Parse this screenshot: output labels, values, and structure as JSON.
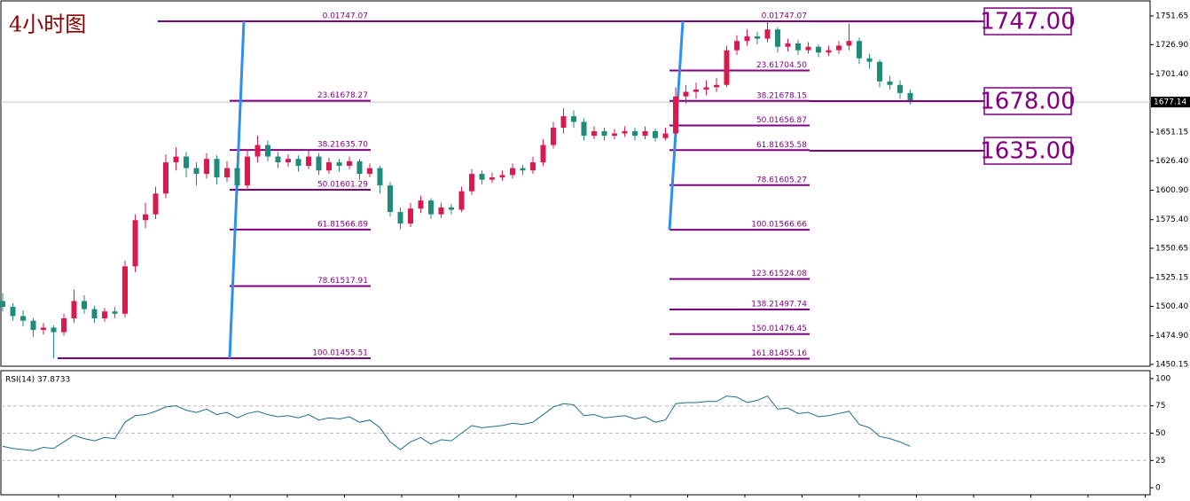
{
  "chart_data": {
    "type": "candlestick",
    "title": "4小时图",
    "ylim": [
      1448.6,
      1764.7
    ],
    "yticks": [
      1751.65,
      {
        "value": 1726.9,
        "label": "1726.90"
      },
      {
        "value": 1701.4,
        "label": "1701.40"
      },
      1651.15,
      {
        "value": 1626.4,
        "label": "1626.40"
      },
      {
        "value": 1600.9,
        "label": "1600.90"
      },
      {
        "value": 1575.4,
        "label": "1575.40"
      },
      1550.65,
      1525.15,
      {
        "value": 1500.4,
        "label": "1500.40"
      },
      {
        "value": 1474.9,
        "label": "1474.90"
      },
      1450.15
    ],
    "up_color": "#d81b4f",
    "down_color": "#1f8b7a",
    "candles": [
      [
        1505,
        1512,
        1496,
        1500
      ],
      [
        1500,
        1503,
        1488,
        1492
      ],
      [
        1492,
        1497,
        1483,
        1488
      ],
      [
        1488,
        1490,
        1474,
        1480
      ],
      [
        1480,
        1486,
        1476,
        1482
      ],
      [
        1482,
        1484,
        1455.51,
        1478
      ],
      [
        1478,
        1494,
        1475,
        1490
      ],
      [
        1490,
        1515,
        1486,
        1505
      ],
      [
        1505,
        1510,
        1494,
        1498
      ],
      [
        1498,
        1501,
        1486,
        1490
      ],
      [
        1490,
        1499,
        1487,
        1496
      ],
      [
        1496,
        1500,
        1490,
        1494
      ],
      [
        1494,
        1540,
        1491,
        1535
      ],
      [
        1535,
        1580,
        1530,
        1575
      ],
      [
        1575,
        1590,
        1568,
        1580
      ],
      [
        1580,
        1604,
        1576,
        1598
      ],
      [
        1598,
        1632,
        1594,
        1625
      ],
      [
        1625,
        1638,
        1618,
        1630
      ],
      [
        1630,
        1634,
        1612,
        1620
      ],
      [
        1620,
        1625,
        1605,
        1615
      ],
      [
        1615,
        1633,
        1611,
        1628
      ],
      [
        1628,
        1631,
        1606,
        1612
      ],
      [
        1612,
        1626,
        1608,
        1620
      ],
      [
        1620,
        1623,
        1598,
        1605
      ],
      [
        1605,
        1636,
        1601,
        1630
      ],
      [
        1630,
        1648,
        1625,
        1640
      ],
      [
        1640,
        1644,
        1626,
        1630
      ],
      [
        1630,
        1634,
        1620,
        1625
      ],
      [
        1625,
        1632,
        1621,
        1628
      ],
      [
        1628,
        1631,
        1617,
        1622
      ],
      [
        1622,
        1635,
        1619,
        1630
      ],
      [
        1630,
        1633,
        1614,
        1618
      ],
      [
        1618,
        1629,
        1615,
        1625
      ],
      [
        1625,
        1628,
        1617,
        1622
      ],
      [
        1622,
        1630,
        1619,
        1626
      ],
      [
        1626,
        1628,
        1610,
        1615
      ],
      [
        1615,
        1624,
        1612,
        1620
      ],
      [
        1620,
        1622,
        1598,
        1605
      ],
      [
        1605,
        1608,
        1578,
        1582
      ],
      [
        1582,
        1586,
        1566.89,
        1572
      ],
      [
        1572,
        1590,
        1569,
        1585
      ],
      [
        1585,
        1596,
        1581,
        1592
      ],
      [
        1592,
        1594,
        1576,
        1580
      ],
      [
        1580,
        1590,
        1577,
        1586
      ],
      [
        1586,
        1589,
        1580,
        1584
      ],
      [
        1584,
        1604,
        1582,
        1600
      ],
      [
        1600,
        1619,
        1597,
        1615
      ],
      [
        1615,
        1618,
        1606,
        1610
      ],
      [
        1610,
        1616,
        1607,
        1612
      ],
      [
        1612,
        1618,
        1609,
        1614
      ],
      [
        1614,
        1624,
        1611,
        1620
      ],
      [
        1620,
        1623,
        1614,
        1618
      ],
      [
        1618,
        1630,
        1615,
        1625
      ],
      [
        1625,
        1645,
        1622,
        1640
      ],
      [
        1640,
        1660,
        1637,
        1655
      ],
      [
        1655,
        1672,
        1650,
        1665
      ],
      [
        1665,
        1670,
        1655,
        1660
      ],
      [
        1660,
        1663,
        1644,
        1648
      ],
      [
        1648,
        1656,
        1645,
        1652
      ],
      [
        1652,
        1655,
        1644,
        1648
      ],
      [
        1648,
        1654,
        1645,
        1650
      ],
      [
        1650,
        1656,
        1647,
        1652
      ],
      [
        1652,
        1655,
        1644,
        1648
      ],
      [
        1648,
        1656,
        1645,
        1652
      ],
      [
        1652,
        1654,
        1643,
        1646
      ],
      [
        1646,
        1655,
        1644,
        1650
      ],
      [
        1650,
        1690,
        1648,
        1682
      ],
      [
        1682,
        1692,
        1676,
        1686
      ],
      [
        1686,
        1694,
        1680,
        1688
      ],
      [
        1688,
        1696,
        1683,
        1690
      ],
      [
        1690,
        1698,
        1686,
        1692
      ],
      [
        1692,
        1726,
        1690,
        1722
      ],
      [
        1722,
        1735,
        1718,
        1730
      ],
      [
        1730,
        1740,
        1726,
        1734
      ],
      [
        1734,
        1738,
        1727,
        1732
      ],
      [
        1732,
        1747.07,
        1729,
        1740
      ],
      [
        1740,
        1742,
        1720,
        1725
      ],
      [
        1725,
        1732,
        1721,
        1728
      ],
      [
        1728,
        1731,
        1718,
        1722
      ],
      [
        1722,
        1729,
        1719,
        1725
      ],
      [
        1725,
        1727,
        1716,
        1720
      ],
      [
        1720,
        1726,
        1717,
        1722
      ],
      [
        1722,
        1730,
        1719,
        1726
      ],
      [
        1726,
        1745,
        1722,
        1730
      ],
      [
        1730,
        1733,
        1710,
        1715
      ],
      [
        1715,
        1719,
        1706,
        1712
      ],
      [
        1712,
        1714,
        1690,
        1695
      ],
      [
        1695,
        1700,
        1688,
        1692
      ],
      [
        1692,
        1696,
        1680,
        1685
      ],
      [
        1685,
        1688,
        1675,
        1677.14
      ]
    ],
    "current_price": 1677.14,
    "fib_color": "#800080",
    "trend_color": "#2f8ff0",
    "fib_sets": [
      {
        "levels": [
          {
            "ratio": "0.0",
            "price": 1747.07
          },
          {
            "ratio": "23.6",
            "price": 1678.27
          },
          {
            "ratio": "38.2",
            "price": {
              "value": 1635.7,
              "label": "1635.70"
            }
          },
          {
            "ratio": "50.0",
            "price": 1601.29
          },
          {
            "ratio": "61.8",
            "price": 1566.89
          },
          {
            "ratio": "78.6",
            "price": 1517.91
          },
          {
            "ratio": "100.0",
            "price": 1455.51
          }
        ]
      },
      {
        "levels": [
          {
            "ratio": "0.0",
            "price": 1747.07
          },
          {
            "ratio": "23.6",
            "price": {
              "value": 1704.5,
              "label": "1704.50"
            }
          },
          {
            "ratio": "38.2",
            "price": 1678.15
          },
          {
            "ratio": "50.0",
            "price": 1656.87
          },
          {
            "ratio": "61.8",
            "price": 1635.58
          },
          {
            "ratio": "78.6",
            "price": 1605.27
          },
          {
            "ratio": "100.0",
            "price": 1566.66
          },
          {
            "ratio": "123.6",
            "price": 1524.08
          },
          {
            "ratio": "138.2",
            "price": 1497.74
          },
          {
            "ratio": "150.0",
            "price": 1476.45
          },
          {
            "ratio": "161.8",
            "price": 1455.16
          }
        ]
      }
    ],
    "annotations": [
      {
        "value": 1747,
        "label": "1747.00"
      },
      {
        "value": 1678,
        "label": "1678.00"
      },
      {
        "value": 1635,
        "label": "1635.00"
      }
    ],
    "rsi": {
      "label": "RSI(14) 37.8733",
      "ylim": [
        -5.6,
        106.4
      ],
      "yticks": [
        100,
        75,
        50,
        25,
        0
      ],
      "color": "#1c6e8c",
      "values": [
        38,
        36,
        35,
        34,
        37,
        36,
        42,
        48,
        45,
        43,
        46,
        45,
        60,
        66,
        67,
        70,
        74,
        75,
        71,
        69,
        72,
        67,
        69,
        64,
        68,
        70,
        67,
        65,
        66,
        64,
        67,
        62,
        64,
        63,
        65,
        60,
        62,
        55,
        42,
        35,
        42,
        46,
        40,
        44,
        43,
        50,
        57,
        55,
        56,
        57,
        59,
        58,
        60,
        67,
        74,
        77,
        76,
        66,
        67,
        64,
        65,
        66,
        63,
        65,
        60,
        62,
        77,
        78,
        78,
        79,
        79,
        84,
        83,
        78,
        80,
        84,
        72,
        73,
        68,
        69,
        65,
        66,
        68,
        70,
        58,
        55,
        47,
        45,
        42,
        37.8733
      ]
    }
  }
}
